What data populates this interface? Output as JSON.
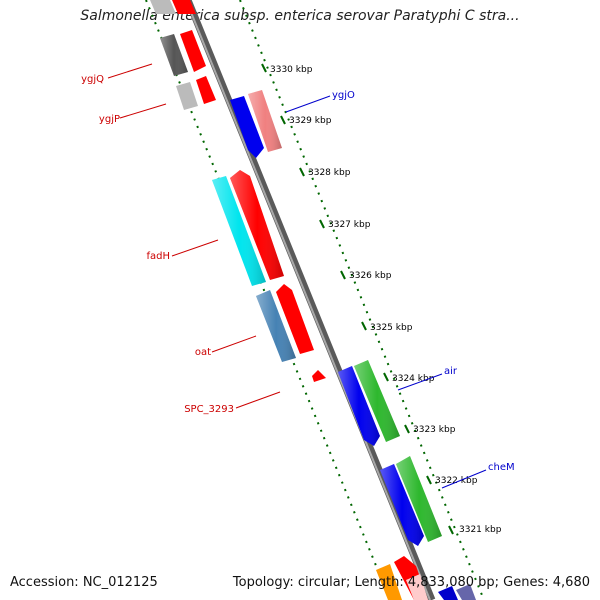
{
  "title": "Salmonella enterica subsp. enterica serovar Paratyphi C stra...",
  "footer": {
    "accession": "Accession: NC_012125",
    "topology": "Topology: circular; Length: 4,833,080 bp; Genes: 4,680"
  },
  "ticks": [
    {
      "label": "3330 kbp"
    },
    {
      "label": "3329 kbp"
    },
    {
      "label": "3328 kbp"
    },
    {
      "label": "3327 kbp"
    },
    {
      "label": "3326 kbp"
    },
    {
      "label": "3325 kbp"
    },
    {
      "label": "3324 kbp"
    },
    {
      "label": "3323 kbp"
    },
    {
      "label": "3322 kbp"
    },
    {
      "label": "3321 kbp"
    }
  ],
  "gene_labels": [
    {
      "text": "ygjQ",
      "color": "#cc0000"
    },
    {
      "text": "ygjP",
      "color": "#cc0000"
    },
    {
      "text": "fadH",
      "color": "#cc0000"
    },
    {
      "text": "oat",
      "color": "#cc0000"
    },
    {
      "text": "SPC_3293",
      "color": "#cc0000"
    },
    {
      "text": "ygjO",
      "color": "#0000cc"
    },
    {
      "text": "air",
      "color": "#0000cc"
    },
    {
      "text": "cheM",
      "color": "#0000cc"
    }
  ],
  "colors": {
    "backbone": "#808080",
    "tick_marks": "#006600",
    "forward_cds": "#ff0000",
    "reverse_cds": "#0000ff"
  }
}
